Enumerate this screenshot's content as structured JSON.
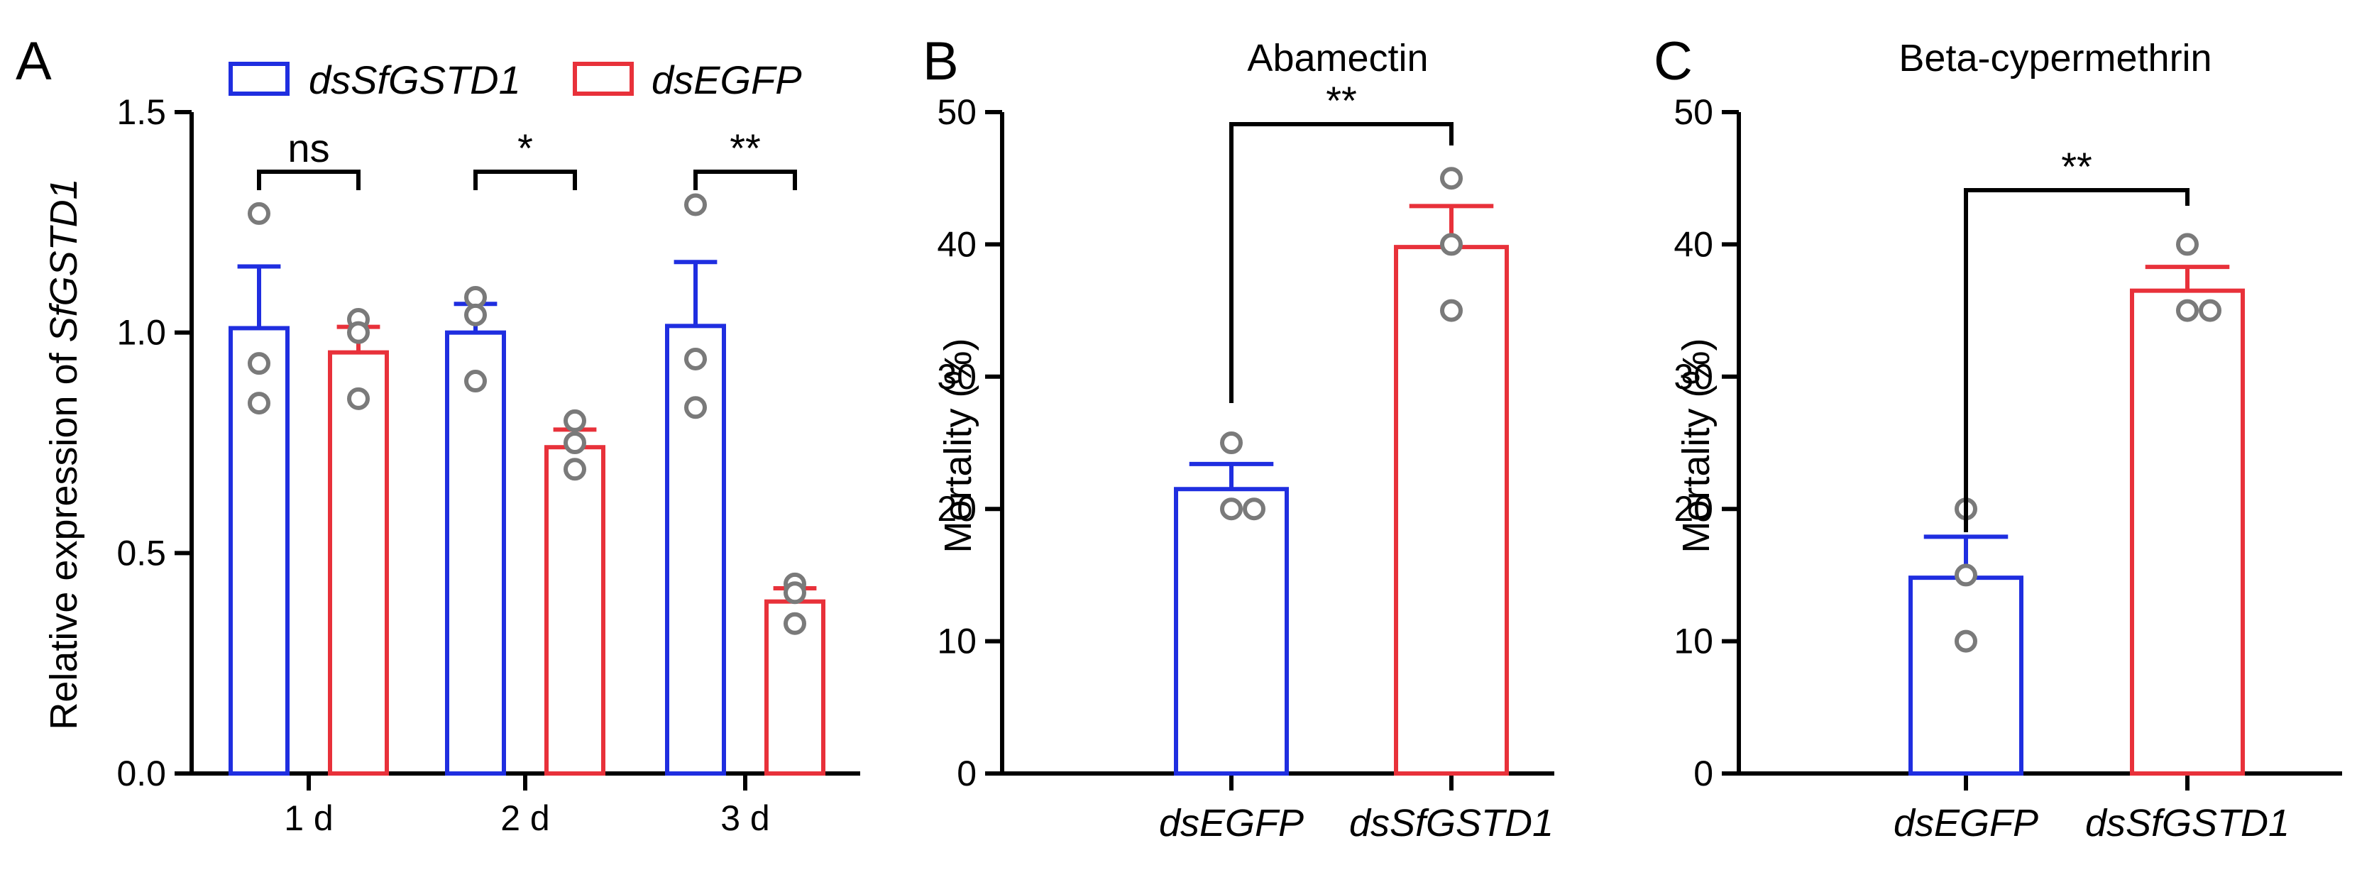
{
  "colors": {
    "blue": "#1f2ee0",
    "red": "#e8313a",
    "point": "#7a7a7a"
  },
  "panels": {
    "A": {
      "letter": "A"
    },
    "B": {
      "letter": "B"
    },
    "C": {
      "letter": "C"
    }
  },
  "chart_data": [
    {
      "id": "A",
      "type": "bar",
      "title": "",
      "ylabel_prefix": "Relative expression of ",
      "ylabel_gene": "SfGSTD1",
      "ylim": [
        0,
        1.5
      ],
      "yticks": [
        "0.0",
        "0.5",
        "1.0",
        "1.5"
      ],
      "ytick_values": [
        0,
        0.5,
        1.0,
        1.5
      ],
      "categories": [
        "1 d",
        "2 d",
        "3 d"
      ],
      "legend": [
        "dsSfGSTD1",
        "dsEGFP"
      ],
      "series": [
        {
          "name": "dsSfGSTD1",
          "color": "blue",
          "values": [
            1.01,
            1.0,
            1.015
          ],
          "errors": [
            0.14,
            0.065,
            0.145
          ],
          "points": [
            [
              1.27,
              0.93,
              0.84
            ],
            [
              1.08,
              1.04,
              0.89
            ],
            [
              1.29,
              0.94,
              0.83
            ]
          ]
        },
        {
          "name": "dsEGFP",
          "color": "red",
          "values": [
            0.955,
            0.74,
            0.39
          ],
          "errors": [
            0.058,
            0.04,
            0.03
          ],
          "points": [
            [
              1.03,
              1.0,
              0.85
            ],
            [
              0.8,
              0.75,
              0.69
            ],
            [
              0.43,
              0.41,
              0.34
            ]
          ]
        }
      ],
      "significance": [
        "ns",
        "*",
        "**"
      ]
    },
    {
      "id": "B",
      "type": "bar",
      "title": "Abamectin",
      "ylabel": "Mortality (%)",
      "ylim": [
        0,
        50
      ],
      "yticks": [
        "0",
        "10",
        "20",
        "30",
        "40",
        "50"
      ],
      "ytick_values": [
        0,
        10,
        20,
        30,
        40,
        50
      ],
      "categories": [
        "dsEGFP",
        "dsSfGSTD1"
      ],
      "colors": [
        "blue",
        "red"
      ],
      "values": [
        21.5,
        39.8
      ],
      "errors": [
        1.9,
        3.1
      ],
      "points": [
        [
          25,
          20,
          20
        ],
        [
          45,
          40,
          35
        ]
      ],
      "significance": "**"
    },
    {
      "id": "C",
      "type": "bar",
      "title": "Beta-cypermethrin",
      "ylabel": "Mortality (%)",
      "ylim": [
        0,
        50
      ],
      "yticks": [
        "0",
        "10",
        "20",
        "30",
        "40",
        "50"
      ],
      "ytick_values": [
        0,
        10,
        20,
        30,
        40,
        50
      ],
      "categories": [
        "dsEGFP",
        "dsSfGSTD1"
      ],
      "colors": [
        "blue",
        "red"
      ],
      "values": [
        14.8,
        36.5
      ],
      "errors": [
        3.1,
        1.8
      ],
      "points": [
        [
          20,
          15,
          10
        ],
        [
          40,
          35,
          35
        ]
      ],
      "significance": "**"
    }
  ]
}
